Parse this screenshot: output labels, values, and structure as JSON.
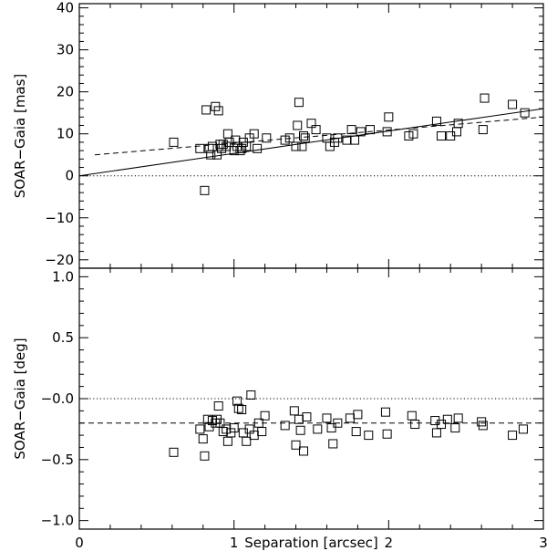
{
  "chart_data": [
    {
      "type": "scatter",
      "xlabel": "",
      "ylabel": "SOAR−Gaia  [mas]",
      "xlim": [
        0,
        3
      ],
      "ylim": [
        -22,
        41
      ],
      "xticks": [
        0,
        1,
        2,
        3
      ],
      "xtick_labels": [
        "",
        "",
        "",
        ""
      ],
      "yticks": [
        -20,
        -10,
        0,
        10,
        20,
        30,
        40
      ],
      "ytick_labels": [
        "−20",
        "−10",
        "0",
        "10",
        "20",
        "30",
        "40"
      ],
      "marker": "open-square",
      "x": [
        0.61,
        0.78,
        0.81,
        0.82,
        0.84,
        0.85,
        0.86,
        0.88,
        0.89,
        0.9,
        0.91,
        0.92,
        0.93,
        0.95,
        0.96,
        0.97,
        1.0,
        1.01,
        1.02,
        1.04,
        1.05,
        1.06,
        1.08,
        1.1,
        1.13,
        1.15,
        1.21,
        1.33,
        1.36,
        1.4,
        1.41,
        1.42,
        1.44,
        1.45,
        1.46,
        1.5,
        1.53,
        1.6,
        1.62,
        1.65,
        1.67,
        1.73,
        1.76,
        1.78,
        1.82,
        1.88,
        1.99,
        2.0,
        2.13,
        2.16,
        2.31,
        2.34,
        2.4,
        2.44,
        2.45,
        2.61,
        2.62,
        2.8,
        2.88
      ],
      "y": [
        8,
        6.5,
        -3.5,
        15.7,
        6.5,
        5,
        7,
        16.5,
        5,
        15.5,
        7.5,
        6.5,
        7.5,
        7,
        10,
        8,
        6,
        8.5,
        7,
        6,
        6.5,
        8,
        7,
        9,
        10,
        6.5,
        9,
        8.5,
        9,
        7,
        12,
        17.5,
        7,
        9.5,
        9,
        12.5,
        11,
        9,
        7,
        8,
        9,
        8.5,
        11,
        8.5,
        10.5,
        11,
        10.5,
        14,
        9.5,
        10,
        13,
        9.5,
        9.5,
        10.5,
        12.5,
        11,
        18.5,
        17,
        15
      ],
      "reference_line": {
        "y": 0,
        "style": "dotted"
      },
      "fit_lines": [
        {
          "style": "solid",
          "x": [
            0,
            3
          ],
          "y": [
            0,
            16
          ]
        },
        {
          "style": "dashed",
          "x": [
            0.1,
            3
          ],
          "y": [
            5,
            14
          ]
        }
      ]
    },
    {
      "type": "scatter",
      "xlabel": "Separation  [arcsec]",
      "ylabel": "SOAR−Gaia  [deg]",
      "xlim": [
        0,
        3
      ],
      "ylim": [
        -1.07,
        1.07
      ],
      "xticks": [
        0,
        1,
        2,
        3
      ],
      "xtick_labels": [
        "0",
        "1",
        "2",
        "3"
      ],
      "yticks": [
        -1.0,
        -0.5,
        0.0,
        0.5,
        1.0
      ],
      "ytick_labels": [
        "−1.0",
        "−0.5",
        "−0.0",
        "0.5",
        "1.0"
      ],
      "marker": "open-square",
      "x": [
        0.61,
        0.78,
        0.8,
        0.81,
        0.83,
        0.84,
        0.86,
        0.88,
        0.89,
        0.9,
        0.91,
        0.93,
        0.95,
        0.96,
        0.98,
        1.0,
        1.02,
        1.03,
        1.05,
        1.06,
        1.08,
        1.1,
        1.11,
        1.13,
        1.16,
        1.18,
        1.2,
        1.33,
        1.39,
        1.4,
        1.42,
        1.43,
        1.45,
        1.47,
        1.54,
        1.6,
        1.63,
        1.64,
        1.67,
        1.75,
        1.79,
        1.8,
        1.87,
        1.98,
        1.99,
        2.15,
        2.17,
        2.3,
        2.31,
        2.34,
        2.38,
        2.43,
        2.45,
        2.6,
        2.61,
        2.8,
        2.87
      ],
      "y": [
        -0.44,
        -0.25,
        -0.33,
        -0.47,
        -0.17,
        -0.23,
        -0.18,
        -0.2,
        -0.17,
        -0.06,
        -0.2,
        -0.27,
        -0.25,
        -0.35,
        -0.28,
        -0.24,
        -0.02,
        -0.08,
        -0.09,
        -0.28,
        -0.35,
        -0.25,
        0.03,
        -0.3,
        -0.2,
        -0.27,
        -0.14,
        -0.22,
        -0.1,
        -0.38,
        -0.17,
        -0.26,
        -0.43,
        -0.15,
        -0.25,
        -0.16,
        -0.24,
        -0.37,
        -0.2,
        -0.16,
        -0.27,
        -0.13,
        -0.3,
        -0.11,
        -0.29,
        -0.14,
        -0.21,
        -0.18,
        -0.28,
        -0.21,
        -0.17,
        -0.24,
        -0.16,
        -0.19,
        -0.22,
        -0.3,
        -0.25
      ],
      "reference_line": {
        "y": 0,
        "style": "dotted"
      },
      "fit_lines": [
        {
          "style": "dashed",
          "x": [
            0,
            3
          ],
          "y": [
            -0.2,
            -0.2
          ]
        }
      ]
    }
  ]
}
